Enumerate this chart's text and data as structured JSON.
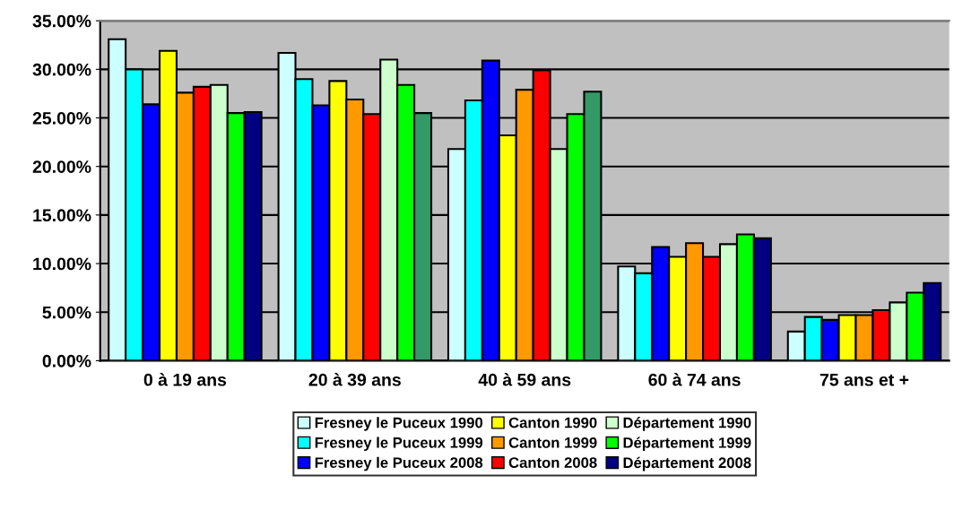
{
  "chart_data": {
    "type": "bar",
    "categories": [
      "0 à 19 ans",
      "20 à 39 ans",
      "40 à 59 ans",
      "60 à 74 ans",
      "75 ans et +"
    ],
    "series": [
      {
        "name": "Fresney le Puceux 1990",
        "color": "#ccffff",
        "values": [
          33.1,
          31.7,
          21.8,
          9.7,
          3.0
        ]
      },
      {
        "name": "Fresney le Puceux 1999",
        "color": "#00ffff",
        "values": [
          30.0,
          29.0,
          26.8,
          9.0,
          4.5
        ]
      },
      {
        "name": "Fresney le Puceux 2008",
        "color": "#0000ff",
        "values": [
          26.4,
          26.3,
          30.9,
          11.7,
          4.2
        ]
      },
      {
        "name": "Canton 1990",
        "color": "#ffff00",
        "values": [
          31.9,
          28.8,
          23.2,
          10.7,
          4.7
        ]
      },
      {
        "name": "Canton 1999",
        "color": "#ff9900",
        "values": [
          27.6,
          26.9,
          27.9,
          12.1,
          4.7
        ]
      },
      {
        "name": "Canton 2008",
        "color": "#ff0000",
        "values": [
          28.2,
          25.4,
          29.9,
          10.7,
          5.2
        ]
      },
      {
        "name": "Département 1990",
        "color": "#ccffcc",
        "values": [
          28.4,
          31.0,
          21.8,
          12.0,
          6.0
        ]
      },
      {
        "name": "Département 1999",
        "color": "#00ff00",
        "values": [
          25.5,
          28.4,
          25.4,
          13.0,
          7.0
        ]
      },
      {
        "name": "Département 2008",
        "color": "#000080",
        "colors": [
          "#000080",
          "#339966",
          "#339966",
          "#000080",
          "#000080"
        ],
        "values": [
          25.6,
          25.5,
          27.7,
          12.6,
          8.0
        ]
      }
    ],
    "ylim": [
      0,
      35
    ],
    "yticks": [
      {
        "value": 0,
        "label": "0.00%"
      },
      {
        "value": 5,
        "label": "5.00%"
      },
      {
        "value": 10,
        "label": "10.00%"
      },
      {
        "value": 15,
        "label": "15.00%"
      },
      {
        "value": 20,
        "label": "20.00%"
      },
      {
        "value": 25,
        "label": "25.00%"
      },
      {
        "value": 30,
        "label": "30.00%"
      },
      {
        "value": 35,
        "label": "35.00%"
      }
    ],
    "grid": "y",
    "legend": "bottom"
  }
}
